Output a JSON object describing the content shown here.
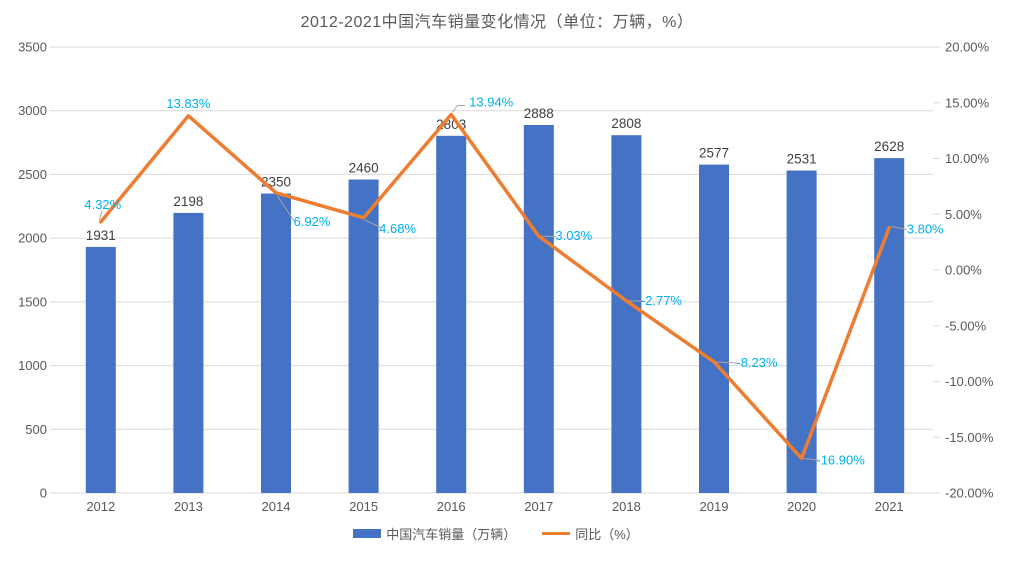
{
  "chart_data": {
    "type": "bar+line combo",
    "title": "2012-2021中国汽车销量变化情况（单位：万辆，%）",
    "categories": [
      "2012",
      "2013",
      "2014",
      "2015",
      "2016",
      "2017",
      "2018",
      "2019",
      "2020",
      "2021"
    ],
    "series": [
      {
        "name": "中国汽车销量（万辆）",
        "type": "bar",
        "axis": "left",
        "color": "#4472C4",
        "values": [
          1931,
          2198,
          2350,
          2460,
          2803,
          2888,
          2808,
          2577,
          2531,
          2628
        ],
        "labels": [
          "1931",
          "2198",
          "2350",
          "2460",
          "2803",
          "2888",
          "2808",
          "2577",
          "2531",
          "2628"
        ],
        "label_color": "#404040"
      },
      {
        "name": "同比（%）",
        "type": "line",
        "axis": "right",
        "color": "#ED7D31",
        "values": [
          4.32,
          13.83,
          6.92,
          4.68,
          13.94,
          3.03,
          -2.77,
          -8.23,
          -16.9,
          3.8
        ],
        "labels": [
          "4.32%",
          "13.83%",
          "6.92%",
          "4.68%",
          "13.94%",
          "3.03%",
          "-2.77%",
          "-8.23%",
          "-16.90%",
          "3.80%"
        ],
        "label_color": "#00B0F0"
      }
    ],
    "left_axis": {
      "min": 0,
      "max": 3500,
      "step": 500,
      "tick_labels": [
        "0",
        "500",
        "1000",
        "1500",
        "2000",
        "2500",
        "3000",
        "3500"
      ]
    },
    "right_axis": {
      "min": -20,
      "max": 20,
      "step": 5,
      "tick_labels": [
        "-20.00%",
        "-15.00%",
        "-10.00%",
        "-5.00%",
        "0.00%",
        "5.00%",
        "10.00%",
        "15.00%",
        "20.00%"
      ]
    },
    "grid": true,
    "legend_position": "bottom",
    "colors": {
      "grid_line": "#D9D9D9",
      "axis_line": "#D9D9D9",
      "tick_label": "#595959",
      "title": "#595959",
      "leader_line": "#A6A6A6",
      "background": "#FFFFFF"
    }
  },
  "legend": {
    "items": [
      {
        "label": "中国汽车销量（万辆）",
        "color": "#4472C4",
        "marker": "rect"
      },
      {
        "label": "同比（%）",
        "color": "#ED7D31",
        "marker": "line"
      }
    ]
  }
}
